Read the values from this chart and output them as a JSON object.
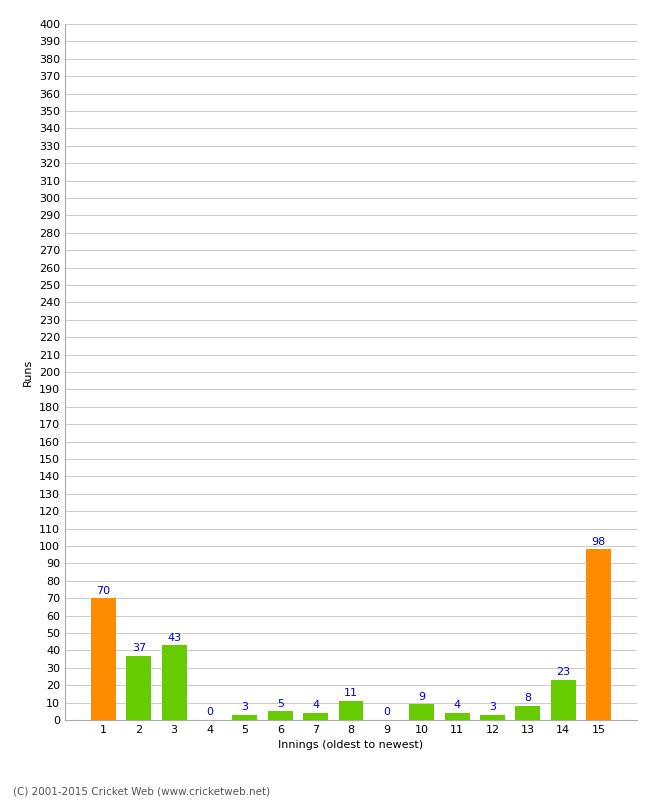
{
  "categories": [
    1,
    2,
    3,
    4,
    5,
    6,
    7,
    8,
    9,
    10,
    11,
    12,
    13,
    14,
    15
  ],
  "values": [
    70,
    37,
    43,
    0,
    3,
    5,
    4,
    11,
    0,
    9,
    4,
    3,
    8,
    23,
    98
  ],
  "bar_colors": [
    "#ff8c00",
    "#66cc00",
    "#66cc00",
    "#66cc00",
    "#66cc00",
    "#66cc00",
    "#66cc00",
    "#66cc00",
    "#66cc00",
    "#66cc00",
    "#66cc00",
    "#66cc00",
    "#66cc00",
    "#66cc00",
    "#ff8c00"
  ],
  "xlabel": "Innings (oldest to newest)",
  "ylabel": "Runs",
  "ylim": [
    0,
    400
  ],
  "ytick_step": 10,
  "label_color": "#0000cc",
  "grid_color": "#cccccc",
  "background_color": "#ffffff",
  "footer": "(C) 2001-2015 Cricket Web (www.cricketweb.net)",
  "footer_color": "#555555",
  "label_fontsize": 8,
  "axis_fontsize": 8,
  "ylabel_fontsize": 8
}
